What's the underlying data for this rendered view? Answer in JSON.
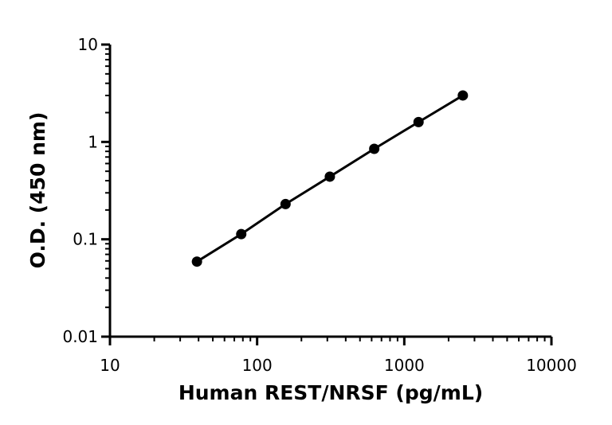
{
  "chart_data": {
    "type": "scatter",
    "xlabel": "Human REST/NRSF (pg/mL)",
    "ylabel": "O.D. (450 nm)",
    "xscale": "log",
    "yscale": "log",
    "xlim": [
      10,
      10000
    ],
    "ylim": [
      0.01,
      10
    ],
    "x_ticks": [
      10,
      100,
      1000,
      10000
    ],
    "x_tick_labels": [
      "10",
      "100",
      "1000",
      "10000"
    ],
    "y_ticks": [
      0.01,
      0.1,
      1,
      10
    ],
    "y_tick_labels": [
      "0.01",
      "0.1",
      "1",
      "10"
    ],
    "grid": false,
    "fit_line": true,
    "series": [
      {
        "x": [
          39,
          78,
          156,
          312,
          625,
          1250,
          2500
        ],
        "y": [
          0.059,
          0.113,
          0.23,
          0.44,
          0.85,
          1.6,
          3.0
        ],
        "color": "#000000",
        "marker": "circle"
      }
    ]
  }
}
